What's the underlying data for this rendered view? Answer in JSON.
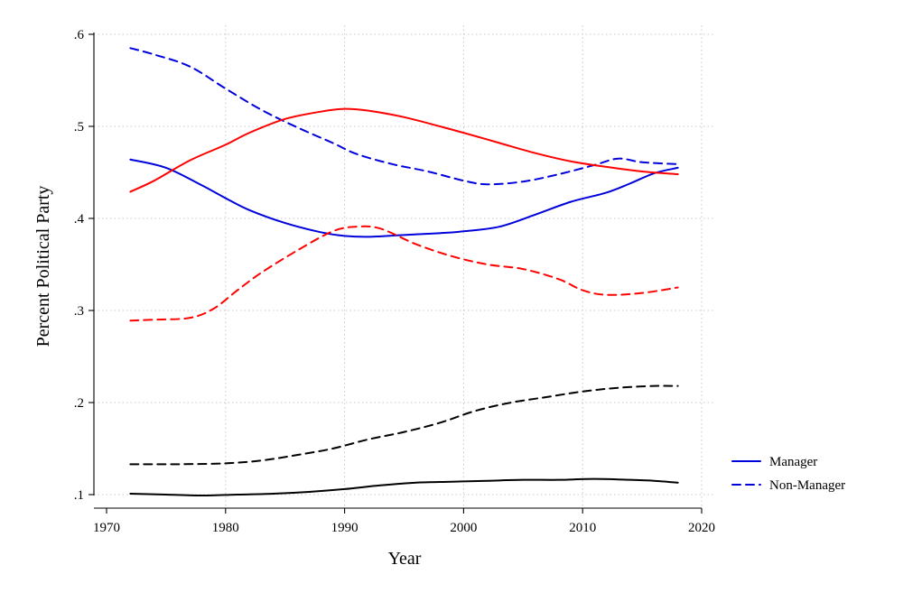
{
  "chart_data": {
    "type": "line",
    "title": "",
    "xlabel": "Year",
    "ylabel": "Percent Political Party",
    "xlim": [
      1970,
      2020
    ],
    "ylim": [
      0.1,
      0.6
    ],
    "x_ticks": [
      1970,
      1980,
      1990,
      2000,
      2010,
      2020
    ],
    "x_tick_labels": [
      "1970",
      "1980",
      "1990",
      "2000",
      "2010",
      "2020"
    ],
    "y_ticks": [
      0.1,
      0.2,
      0.3,
      0.4,
      0.5,
      0.6
    ],
    "y_tick_labels": [
      ".1",
      ".2",
      ".3",
      ".4",
      ".5",
      ".6"
    ],
    "grid": true,
    "legend": {
      "position": "right",
      "entries": [
        {
          "label": "Manager",
          "style": "solid",
          "color": "#0000dd"
        },
        {
          "label": "Non-Manager",
          "style": "dashed",
          "color": "#0000dd"
        }
      ]
    },
    "series": [
      {
        "name": "Blue Manager",
        "color": "#0000dd",
        "style": "solid",
        "x": [
          1972,
          1975,
          1978,
          1980,
          1982,
          1985,
          1988,
          1990,
          1992,
          1995,
          1998,
          2000,
          2003,
          2006,
          2009,
          2012,
          2014,
          2016,
          2018
        ],
        "y": [
          0.464,
          0.455,
          0.436,
          0.422,
          0.409,
          0.395,
          0.385,
          0.381,
          0.38,
          0.382,
          0.384,
          0.386,
          0.391,
          0.404,
          0.418,
          0.428,
          0.438,
          0.449,
          0.455
        ]
      },
      {
        "name": "Blue Non-Manager",
        "color": "#0000dd",
        "style": "dashed",
        "x": [
          1972,
          1974,
          1977,
          1980,
          1983,
          1986,
          1989,
          1991,
          1994,
          1997,
          2000,
          2002,
          2005,
          2008,
          2011,
          2013,
          2015,
          2018
        ],
        "y": [
          0.585,
          0.578,
          0.565,
          0.541,
          0.518,
          0.499,
          0.482,
          0.47,
          0.459,
          0.451,
          0.441,
          0.437,
          0.44,
          0.448,
          0.458,
          0.465,
          0.461,
          0.459
        ]
      },
      {
        "name": "Red Manager",
        "color": "#ff0000",
        "style": "solid",
        "x": [
          1972,
          1974,
          1977,
          1980,
          1982,
          1985,
          1988,
          1990,
          1992,
          1995,
          1998,
          2000,
          2003,
          2006,
          2009,
          2012,
          2015,
          2018
        ],
        "y": [
          0.429,
          0.441,
          0.463,
          0.48,
          0.493,
          0.508,
          0.516,
          0.519,
          0.517,
          0.51,
          0.5,
          0.493,
          0.482,
          0.471,
          0.462,
          0.456,
          0.451,
          0.448
        ]
      },
      {
        "name": "Red Non-Manager",
        "color": "#ff0000",
        "style": "dashed",
        "x": [
          1972,
          1974,
          1977,
          1979,
          1981,
          1983,
          1986,
          1989,
          1991,
          1993,
          1996,
          1999,
          2002,
          2005,
          2008,
          2010,
          2012,
          2015,
          2018
        ],
        "y": [
          0.289,
          0.29,
          0.292,
          0.302,
          0.322,
          0.341,
          0.365,
          0.386,
          0.391,
          0.389,
          0.372,
          0.359,
          0.35,
          0.345,
          0.334,
          0.322,
          0.317,
          0.319,
          0.325
        ]
      },
      {
        "name": "Black Non-Manager",
        "color": "#000000",
        "style": "dashed",
        "x": [
          1972,
          1976,
          1980,
          1983,
          1986,
          1989,
          1992,
          1995,
          1998,
          2001,
          2004,
          2007,
          2010,
          2013,
          2016,
          2018
        ],
        "y": [
          0.133,
          0.133,
          0.134,
          0.137,
          0.143,
          0.15,
          0.16,
          0.168,
          0.178,
          0.191,
          0.2,
          0.206,
          0.212,
          0.216,
          0.218,
          0.218
        ]
      },
      {
        "name": "Black Manager",
        "color": "#000000",
        "style": "solid",
        "x": [
          1972,
          1975,
          1978,
          1981,
          1984,
          1987,
          1990,
          1993,
          1996,
          1999,
          2002,
          2005,
          2008,
          2011,
          2014,
          2016,
          2018
        ],
        "y": [
          0.101,
          0.1,
          0.099,
          0.1,
          0.101,
          0.103,
          0.106,
          0.11,
          0.113,
          0.114,
          0.115,
          0.116,
          0.116,
          0.117,
          0.116,
          0.115,
          0.113
        ]
      }
    ]
  }
}
